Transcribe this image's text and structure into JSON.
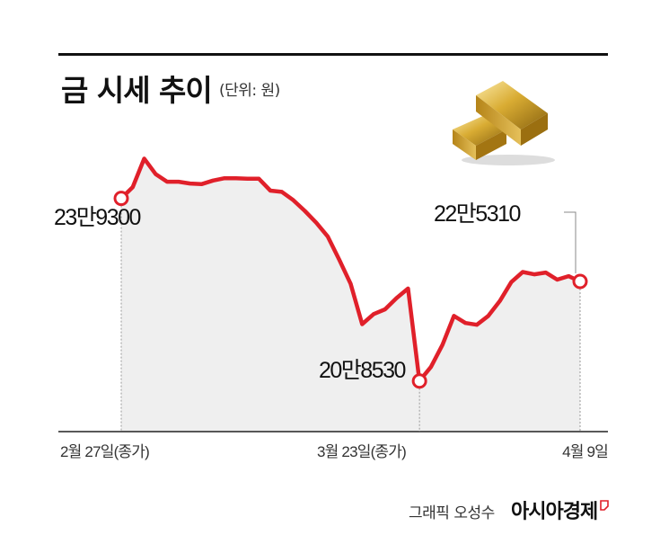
{
  "header": {
    "title": "금 시세 추이",
    "unit": "(단위: 원)"
  },
  "footer": {
    "credit": "그래픽 오성수",
    "logo_text": "아시아경제"
  },
  "colors": {
    "line": "#e0202a",
    "area": "#efefef",
    "gold": "#d7a92a"
  },
  "chart_data": {
    "type": "line",
    "title": "금 시세 추이",
    "ylabel": "(단위: 원)",
    "x_labels": [
      "2월 27일(종가)",
      "3월 23일(종가)",
      "4월 9일"
    ],
    "annotations": [
      {
        "label": "23만9300",
        "index": 0
      },
      {
        "label": "20만8530",
        "index": 26
      },
      {
        "label": "22만5310",
        "index": 40
      }
    ],
    "y_range": [
      200000,
      250000
    ],
    "series": [
      {
        "values": [
          239300,
          241200,
          246000,
          243400,
          242100,
          242100,
          241800,
          241700,
          242300,
          242700,
          242700,
          242600,
          242600,
          240600,
          240400,
          239000,
          237200,
          235200,
          232900,
          229000,
          224900,
          218100,
          219800,
          220600,
          222500,
          224100,
          208530,
          210900,
          214600,
          219500,
          218300,
          218000,
          219500,
          222000,
          225200,
          226900,
          226500,
          226800,
          225600,
          226200,
          225310
        ]
      }
    ]
  }
}
